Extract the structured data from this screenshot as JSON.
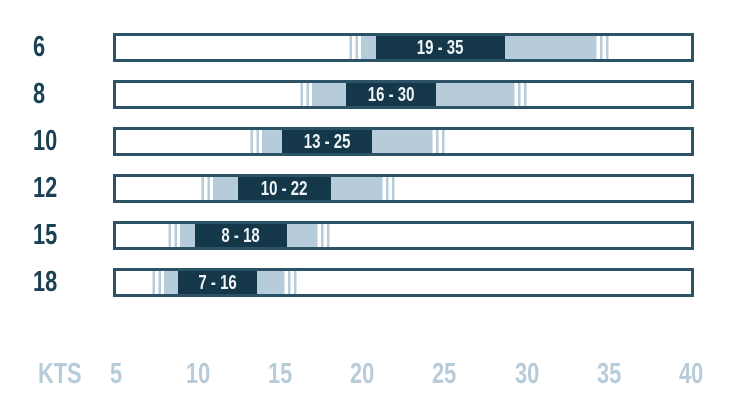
{
  "colors": {
    "dark_navy": "#14384a",
    "bar_border": "#2c5365",
    "band_blue": "#b7ccda",
    "axis_text": "#b7cbd9",
    "row_text": "#1b4254",
    "box_text": "#eef3f6"
  },
  "chart_data": {
    "type": "bar",
    "orientation": "horizontal",
    "title": "",
    "unit_label": "KTS",
    "xlim": [
      5,
      40
    ],
    "x_ticks": [
      5,
      10,
      15,
      20,
      25,
      30,
      35,
      40
    ],
    "grid": false,
    "legend": "none",
    "rows": [
      {
        "size": "6",
        "range_label": "19 - 35",
        "range_min": 19,
        "range_max": 35,
        "label_box_kts": [
          20.8,
          28.7
        ]
      },
      {
        "size": "8",
        "range_label": "16 - 30",
        "range_min": 16,
        "range_max": 30,
        "label_box_kts": [
          19.0,
          24.5
        ]
      },
      {
        "size": "10",
        "range_label": "13 - 25",
        "range_min": 13,
        "range_max": 25,
        "label_box_kts": [
          15.1,
          20.6
        ]
      },
      {
        "size": "12",
        "range_label": "10 - 22",
        "range_min": 10,
        "range_max": 22,
        "label_box_kts": [
          12.4,
          18.1
        ]
      },
      {
        "size": "15",
        "range_label": "8 - 18",
        "range_min": 8,
        "range_max": 18,
        "label_box_kts": [
          9.8,
          15.4
        ]
      },
      {
        "size": "18",
        "range_label": "7 - 16",
        "range_min": 7,
        "range_max": 16,
        "label_box_kts": [
          8.8,
          13.6
        ]
      }
    ]
  }
}
